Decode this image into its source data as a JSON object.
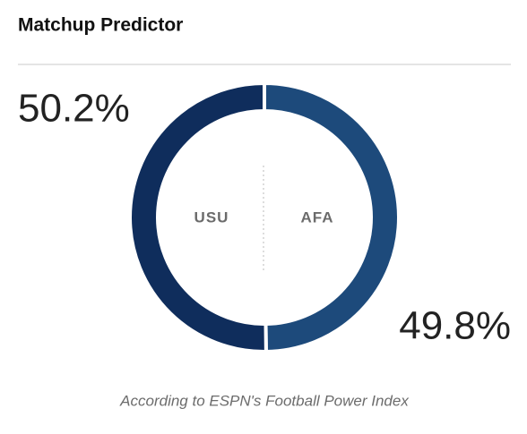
{
  "chart_data": {
    "type": "donut",
    "title": "Matchup Predictor",
    "categories": [
      "USU",
      "AFA"
    ],
    "values": [
      50.2,
      49.8
    ],
    "value_labels": [
      "50.2%",
      "49.8%"
    ],
    "colors": [
      "#0f2d5c",
      "#1d4a7b"
    ],
    "footnote": "According to ESPN's Football Power Index"
  }
}
